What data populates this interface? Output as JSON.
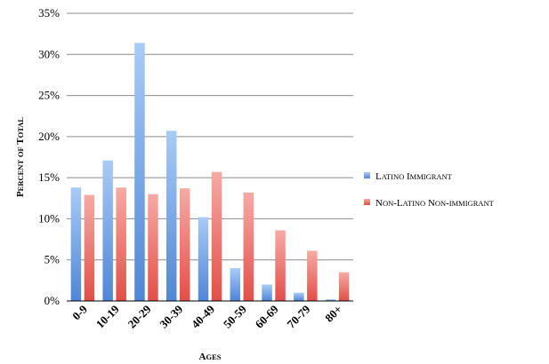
{
  "chart_data": {
    "type": "bar",
    "categories": [
      "0-9",
      "10-19",
      "20-29",
      "30-39",
      "40-49",
      "50-59",
      "60-69",
      "70-79",
      "80+"
    ],
    "series": [
      {
        "name": "Latino Immigrant",
        "values": [
          13.8,
          17.1,
          31.4,
          20.7,
          10.2,
          4.0,
          2.0,
          1.0,
          0.2
        ],
        "color": "#5b8fd9"
      },
      {
        "name": "Non-Latino Non-immigrant",
        "values": [
          12.9,
          13.8,
          13.0,
          13.7,
          15.7,
          13.2,
          8.6,
          6.1,
          3.5
        ],
        "color": "#e8625b"
      }
    ],
    "xlabel": "Ages",
    "ylabel": "Percent of Total",
    "ylim": [
      0,
      35
    ],
    "ytick_step": 5,
    "ytick_suffix": "%",
    "grid": true,
    "legend": "right"
  }
}
